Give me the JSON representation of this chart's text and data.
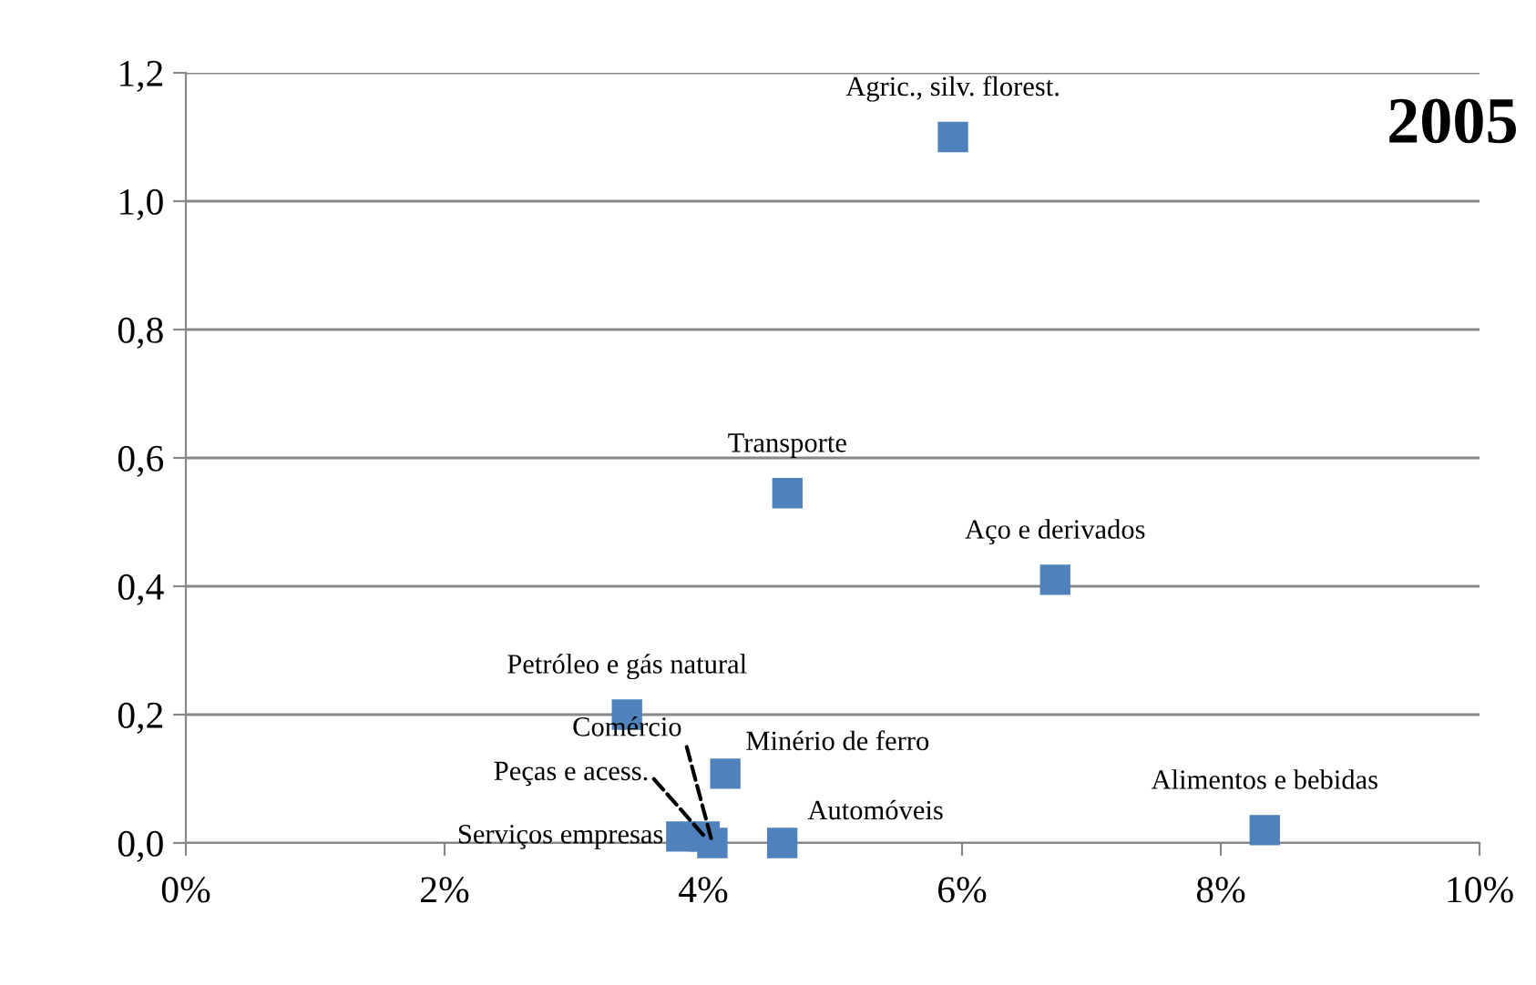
{
  "chart_data": {
    "type": "scatter",
    "marker": "square",
    "grid": "y",
    "legend": false,
    "x": [
      5.93,
      4.65,
      6.72,
      3.41,
      4.17,
      4.61,
      8.34,
      3.83,
      4.07,
      4.01
    ],
    "series": [
      {
        "color": "#4f81bd",
        "values": [
          1.1,
          0.545,
          0.41,
          0.2,
          0.108,
          0.0,
          0.02,
          0.01,
          0.0,
          0.01
        ]
      }
    ],
    "xlim": [
      0,
      10
    ],
    "xticks": [
      {
        "value": 0,
        "label": "0%"
      },
      {
        "value": 2,
        "label": "2%"
      },
      {
        "value": 4,
        "label": "4%"
      },
      {
        "value": 6,
        "label": "6%"
      },
      {
        "value": 8,
        "label": "8%"
      },
      {
        "value": 10,
        "label": "10%"
      }
    ],
    "ylim": [
      0,
      1.2
    ],
    "yticks": [
      {
        "value": 0,
        "label": "0,0"
      },
      {
        "value": 0.2,
        "label": "0,2"
      },
      {
        "value": 0.4,
        "label": "0,4"
      },
      {
        "value": 0.6,
        "label": "0,6"
      },
      {
        "value": 0.8,
        "label": "0,8"
      },
      {
        "value": 1.0,
        "label": "1,0"
      },
      {
        "value": 1.2,
        "label": "1,2"
      }
    ],
    "annotations": [
      {
        "text": "Agric., silv. florest.",
        "x": 5.93,
        "y": 1.1
      },
      {
        "text": "Transporte",
        "x": 4.65,
        "y": 0.545
      },
      {
        "text": "Aço e derivados",
        "x": 6.72,
        "y": 0.41
      },
      {
        "text": "Petróleo e gás natural",
        "x": 3.41,
        "y": 0.2
      },
      {
        "text": "Minério de ferro",
        "x": 4.17,
        "y": 0.108
      },
      {
        "text": "Automóveis",
        "x": 4.61,
        "y": 0.0
      },
      {
        "text": "Alimentos e bebidas",
        "x": 8.34,
        "y": 0.02
      },
      {
        "text": "Serviços empresas",
        "x": 3.83,
        "y": 0.01
      },
      {
        "text": "Comércio",
        "x": 4.07,
        "y": 0.0
      },
      {
        "text": "Peças e acess.",
        "x": 4.01,
        "y": 0.01
      },
      "2005"
    ]
  }
}
